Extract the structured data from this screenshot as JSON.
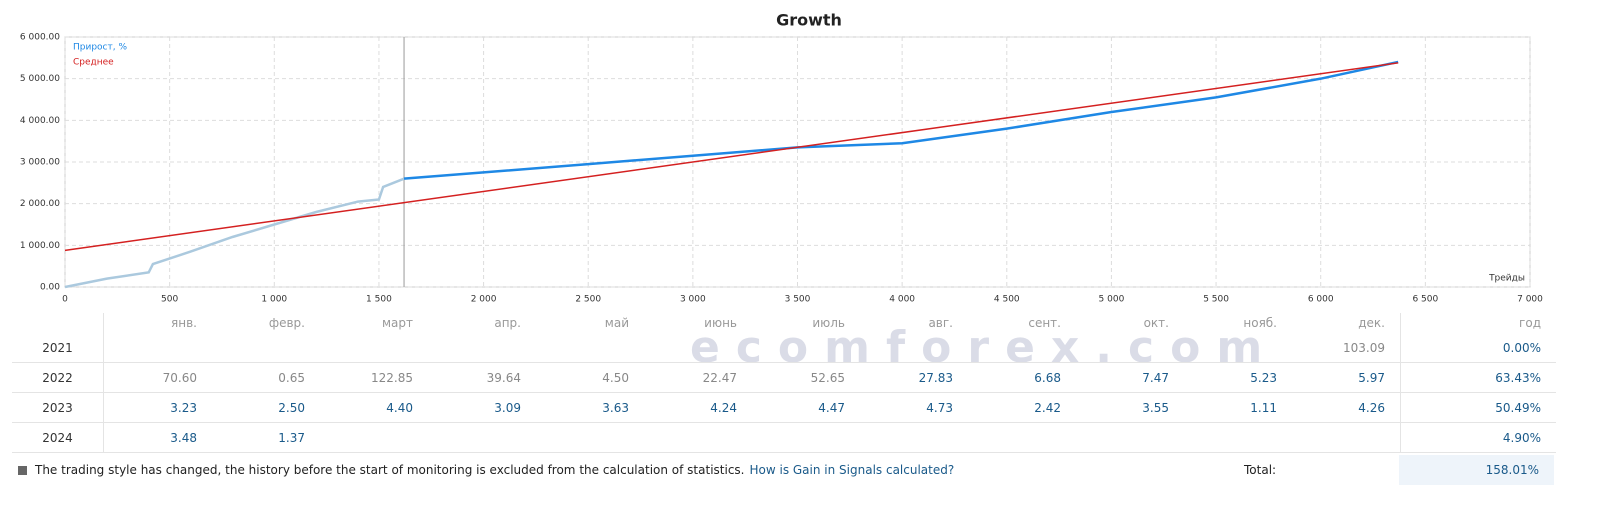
{
  "chart_data": {
    "type": "line",
    "title": "Growth",
    "xlabel": "Трейды",
    "xlim": [
      0,
      7000
    ],
    "xticks": [
      0,
      500,
      {
        "value": 1000,
        "label": "1 000"
      },
      {
        "value": 1500,
        "label": "1 500"
      },
      {
        "value": 2000,
        "label": "2 000"
      },
      {
        "value": 2500,
        "label": "2 500"
      },
      {
        "value": 3000,
        "label": "3 000"
      },
      {
        "value": 3500,
        "label": "3 500"
      },
      {
        "value": 4000,
        "label": "4 000"
      },
      {
        "value": 4500,
        "label": "4 500"
      },
      {
        "value": 5000,
        "label": "5 000"
      },
      {
        "value": 5500,
        "label": "5 500"
      },
      {
        "value": 6000,
        "label": "6 000"
      },
      {
        "value": 6500,
        "label": "6 500"
      },
      {
        "value": 7000,
        "label": "7 000"
      }
    ],
    "ylim": [
      0,
      6000
    ],
    "yticks": [
      {
        "value": 0,
        "label": "0.00"
      },
      {
        "value": 1000,
        "label": "1 000.00"
      },
      {
        "value": 2000,
        "label": "2 000.00"
      },
      {
        "value": 3000,
        "label": "3 000.00"
      },
      {
        "value": 4000,
        "label": "4 000.00"
      },
      {
        "value": 5000,
        "label": "5 000.00"
      },
      {
        "value": 6000,
        "label": "6 000.00"
      }
    ],
    "grid": true,
    "legend": "upper-left",
    "vertical_line_x": 1620,
    "history_color": "#abc9de",
    "series": [
      {
        "name": "Прирост, %",
        "color": "#1e88e5",
        "x": [
          0,
          200,
          400,
          420,
          600,
          800,
          1000,
          1200,
          1400,
          1500,
          1520,
          1620,
          2000,
          2500,
          3000,
          3500,
          4000,
          4500,
          5000,
          5500,
          6000,
          6370
        ],
        "values": [
          0,
          200,
          350,
          550,
          850,
          1200,
          1500,
          1800,
          2050,
          2100,
          2400,
          2600,
          2750,
          2950,
          3150,
          3350,
          3450,
          3800,
          4200,
          4550,
          5000,
          5400
        ]
      },
      {
        "name": "Среднее",
        "color": "#d42020",
        "x": [
          0,
          6370
        ],
        "values": [
          880,
          5380
        ]
      }
    ]
  },
  "watermark": "ecomforex.com",
  "table": {
    "header": [
      "янв.",
      "февр.",
      "март",
      "апр.",
      "май",
      "июнь",
      "июль",
      "авг.",
      "сент.",
      "окт.",
      "нояб.",
      "дек.",
      "год"
    ],
    "rows": [
      {
        "year": "2021",
        "muted_months": 12,
        "cells": [
          null,
          null,
          null,
          null,
          null,
          null,
          null,
          null,
          null,
          null,
          null,
          "103.09"
        ],
        "total": "0.00%"
      },
      {
        "year": "2022",
        "muted_months": 7,
        "cells": [
          "70.60",
          "0.65",
          "122.85",
          "39.64",
          "4.50",
          "22.47",
          "52.65",
          "27.83",
          "6.68",
          "7.47",
          "5.23",
          "5.97"
        ],
        "total": "63.43%"
      },
      {
        "year": "2023",
        "muted_months": 0,
        "cells": [
          "3.23",
          "2.50",
          "4.40",
          "3.09",
          "3.63",
          "4.24",
          "4.47",
          "4.73",
          "2.42",
          "3.55",
          "1.11",
          "4.26"
        ],
        "total": "50.49%"
      },
      {
        "year": "2024",
        "muted_months": 0,
        "cells": [
          "3.48",
          "1.37",
          null,
          null,
          null,
          null,
          null,
          null,
          null,
          null,
          null,
          null
        ],
        "total": "4.90%"
      }
    ]
  },
  "footer": {
    "note": "The trading style has changed, the history before the start of monitoring is excluded from the calculation of statistics.",
    "link": "How is Gain in Signals calculated?",
    "total_label": "Total:",
    "total_value": "158.01%"
  }
}
